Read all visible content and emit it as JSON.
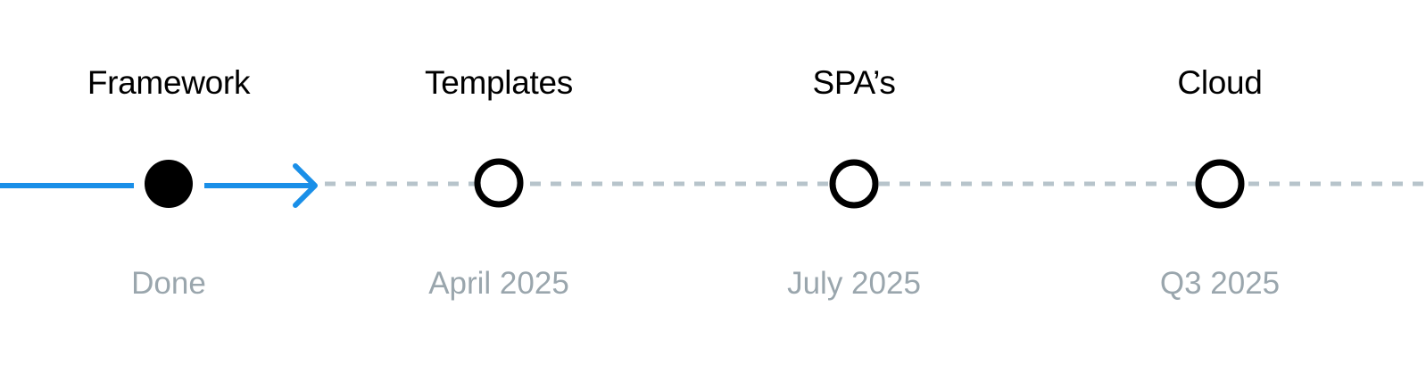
{
  "colors": {
    "accent": "#1a8fe8",
    "pending_line": "#b7c4cb",
    "node": "#000000",
    "date_text": "#9aa6ad"
  },
  "milestones": [
    {
      "title": "Framework",
      "date": "Done",
      "status": "done"
    },
    {
      "title": "Templates",
      "date": "April 2025",
      "status": "pending"
    },
    {
      "title": "SPA’s",
      "date": "July 2025",
      "status": "pending"
    },
    {
      "title": "Cloud",
      "date": "Q3 2025",
      "status": "pending"
    }
  ]
}
